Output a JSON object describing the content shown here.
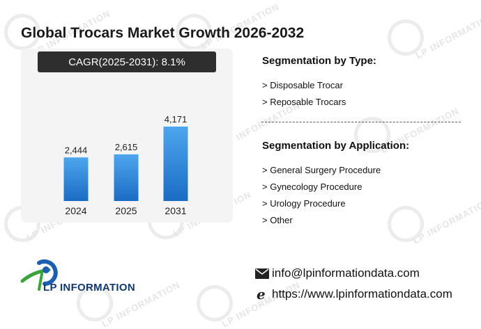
{
  "title": "Global Trocars Market Growth 2026-2032",
  "cagr_label": "CAGR(2025-2031):   8.1%",
  "chart_data": {
    "type": "bar",
    "categories": [
      "2024",
      "2025",
      "2031"
    ],
    "values": [
      2444,
      2615,
      4171
    ],
    "value_labels": [
      "2,444",
      "2,615",
      "4,171"
    ],
    "title": "",
    "xlabel": "",
    "ylabel": "",
    "ylim": [
      0,
      4600
    ],
    "grid": false,
    "bar_color_top": "#4ea6ee",
    "bar_color_bottom": "#1a6cc4"
  },
  "segmentation": {
    "type_heading": "Segmentation by Type:",
    "type_items": [
      "> Disposable Trocar",
      "> Reposable Trocars"
    ],
    "application_heading": "Segmentation by Application:",
    "application_items": [
      "> General Surgery Procedure",
      "> Gynecology Procedure",
      "> Urology Procedure",
      "> Other"
    ]
  },
  "contact": {
    "email": "info@lpinformationdata.com",
    "website": "https://www.lpinformationdata.com",
    "email_icon": "envelope-icon",
    "web_icon": "browser-e-icon"
  },
  "brand": {
    "name": "LP INFORMATION",
    "watermark_text": "LP INFORMATION",
    "colors": {
      "blue": "#1b5fb0",
      "green": "#3aa33a",
      "navy": "#123a6e"
    }
  }
}
